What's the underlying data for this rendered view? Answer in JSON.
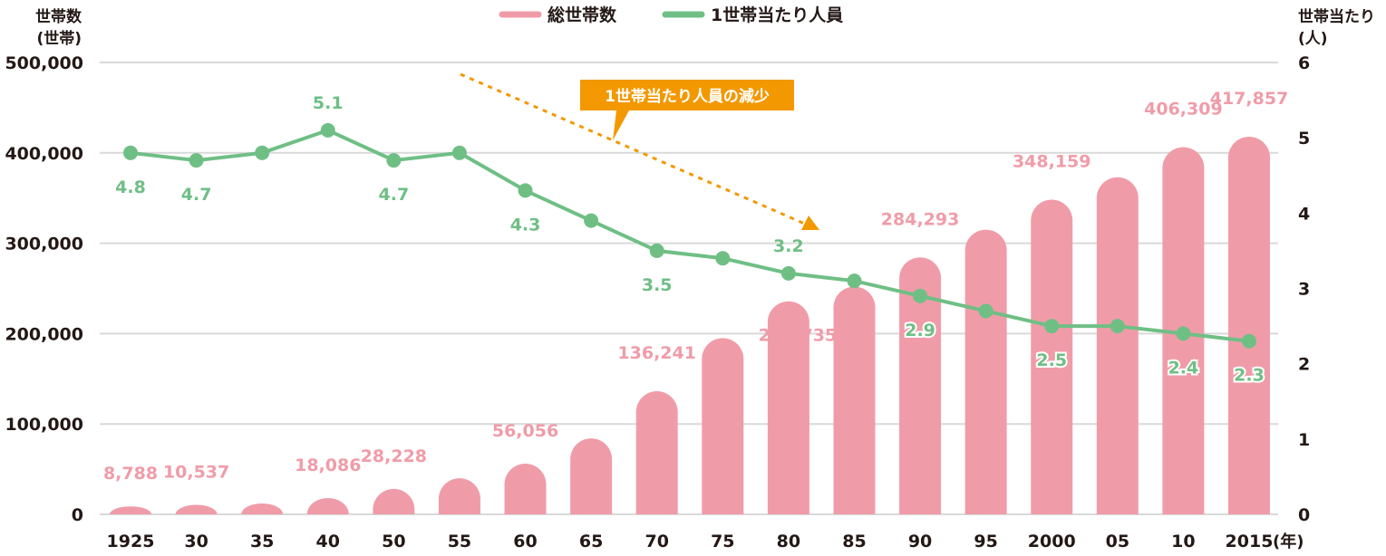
{
  "chart_data": {
    "type": "bar+line",
    "categories": [
      "1925",
      "30",
      "35",
      "40",
      "50",
      "55",
      "60",
      "65",
      "70",
      "75",
      "80",
      "85",
      "90",
      "95",
      "2000",
      "05",
      "10",
      "2015"
    ],
    "x_unit_label": "(年)",
    "left_axis": {
      "label_line1": "世帯数",
      "label_line2": "(世帯)",
      "range": [
        0,
        500000
      ],
      "ticks": [
        0,
        100000,
        200000,
        300000,
        400000,
        500000
      ],
      "tick_labels": [
        "0",
        "100,000",
        "200,000",
        "300,000",
        "400,000",
        "500,000"
      ]
    },
    "right_axis": {
      "label_line1": "世帯当たり",
      "label_line2": "(人)",
      "range": [
        0,
        6
      ],
      "ticks": [
        0,
        1,
        2,
        3,
        4,
        5,
        6
      ],
      "tick_labels": [
        "0",
        "1",
        "2",
        "3",
        "4",
        "5",
        "6"
      ]
    },
    "grid": true,
    "legend_position": "top-center",
    "series": [
      {
        "name": "総世帯数",
        "type": "bar",
        "axis": "left",
        "color": "#f09ca8",
        "values": [
          8788,
          10537,
          12000,
          18086,
          28228,
          40000,
          56056,
          84000,
          136241,
          195000,
          235735,
          252000,
          284293,
          315000,
          348159,
          373000,
          406309,
          417857
        ],
        "labels": [
          "8,788",
          "10,537",
          "",
          "18,086",
          "28,228",
          "",
          "56,056",
          "",
          "136,241",
          "",
          "235,735",
          "",
          "284,293",
          "",
          "348,159",
          "",
          "406,309",
          "417,857"
        ]
      },
      {
        "name": "1世帯当たり人員",
        "type": "line",
        "axis": "right",
        "color": "#6fbf85",
        "values": [
          4.8,
          4.7,
          4.8,
          5.1,
          4.7,
          4.8,
          4.3,
          3.9,
          3.5,
          3.4,
          3.2,
          3.1,
          2.9,
          2.7,
          2.5,
          2.5,
          2.4,
          2.3
        ],
        "labels": [
          "4.8",
          "4.7",
          "",
          "5.1",
          "4.7",
          "",
          "4.3",
          "",
          "3.5",
          "",
          "3.2",
          "",
          "2.9",
          "",
          "2.5",
          "",
          "2.4",
          "2.3"
        ]
      }
    ],
    "annotation": {
      "text": "1世帯当たり人員の減少",
      "color": "#f39800"
    }
  }
}
